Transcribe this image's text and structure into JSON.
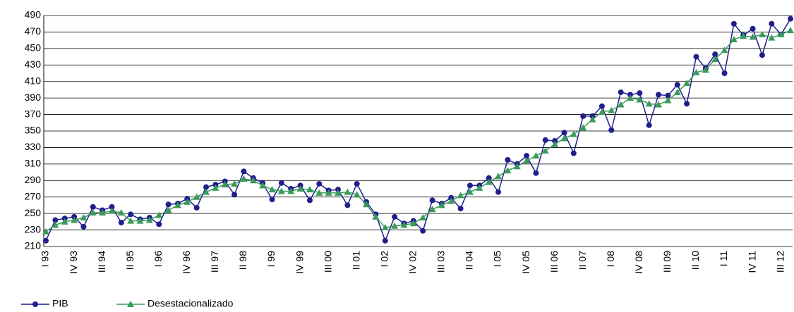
{
  "chart_data": {
    "type": "line",
    "categories": [
      "I 93",
      null,
      null,
      "IV 93",
      null,
      null,
      "III 94",
      null,
      null,
      "II 95",
      null,
      null,
      "I 96",
      null,
      null,
      "IV 96",
      null,
      null,
      "III 97",
      null,
      null,
      "II 98",
      null,
      null,
      "I 99",
      null,
      null,
      "IV 99",
      null,
      null,
      "III 00",
      null,
      null,
      "II 01",
      null,
      null,
      "I 02",
      null,
      null,
      "IV 02",
      null,
      null,
      "III 03",
      null,
      null,
      "II 04",
      null,
      null,
      "I 05",
      null,
      null,
      "IV 05",
      null,
      null,
      "III 06",
      null,
      null,
      "II 07",
      null,
      null,
      "I 08",
      null,
      null,
      "IV 08",
      null,
      null,
      "III 09",
      null,
      null,
      "II 10",
      null,
      null,
      "I 11",
      null,
      null,
      "IV 11",
      null,
      null,
      "III 12",
      null
    ],
    "series": [
      {
        "name": "PIB",
        "color": "#1f1f8c",
        "marker": "circle",
        "values": [
          217,
          242,
          244,
          246,
          234,
          258,
          254,
          258,
          239,
          249,
          243,
          245,
          237,
          261,
          262,
          268,
          257,
          282,
          285,
          289,
          273,
          301,
          293,
          287,
          267,
          287,
          280,
          284,
          266,
          286,
          278,
          279,
          260,
          286,
          264,
          249,
          217,
          246,
          238,
          241,
          229,
          266,
          262,
          269,
          256,
          284,
          284,
          293,
          276,
          315,
          310,
          320,
          299,
          339,
          338,
          348,
          323,
          368,
          368,
          380,
          351,
          397,
          394,
          396,
          357,
          394,
          393,
          406,
          383,
          440,
          426,
          443,
          420,
          480,
          466,
          474,
          442,
          480,
          467,
          486
        ]
      },
      {
        "name": "Desestacionalizado",
        "color": "#3a9a5a",
        "marker": "triangle",
        "values": [
          228,
          236,
          240,
          242,
          245,
          251,
          251,
          253,
          251,
          241,
          241,
          242,
          248,
          254,
          260,
          264,
          270,
          276,
          281,
          285,
          286,
          292,
          290,
          284,
          279,
          277,
          277,
          280,
          279,
          275,
          275,
          275,
          276,
          273,
          261,
          246,
          233,
          235,
          236,
          238,
          245,
          255,
          260,
          265,
          272,
          276,
          281,
          288,
          295,
          302,
          307,
          314,
          320,
          326,
          334,
          341,
          346,
          354,
          364,
          373,
          375,
          382,
          390,
          388,
          383,
          382,
          387,
          397,
          408,
          421,
          424,
          437,
          448,
          461,
          465,
          464,
          467,
          463,
          467,
          472
        ]
      }
    ],
    "ylim": [
      210,
      490
    ],
    "yticks": [
      210,
      230,
      250,
      270,
      290,
      310,
      330,
      350,
      370,
      390,
      410,
      430,
      450,
      470,
      490
    ],
    "grid": true,
    "legend": "bottom-left"
  }
}
